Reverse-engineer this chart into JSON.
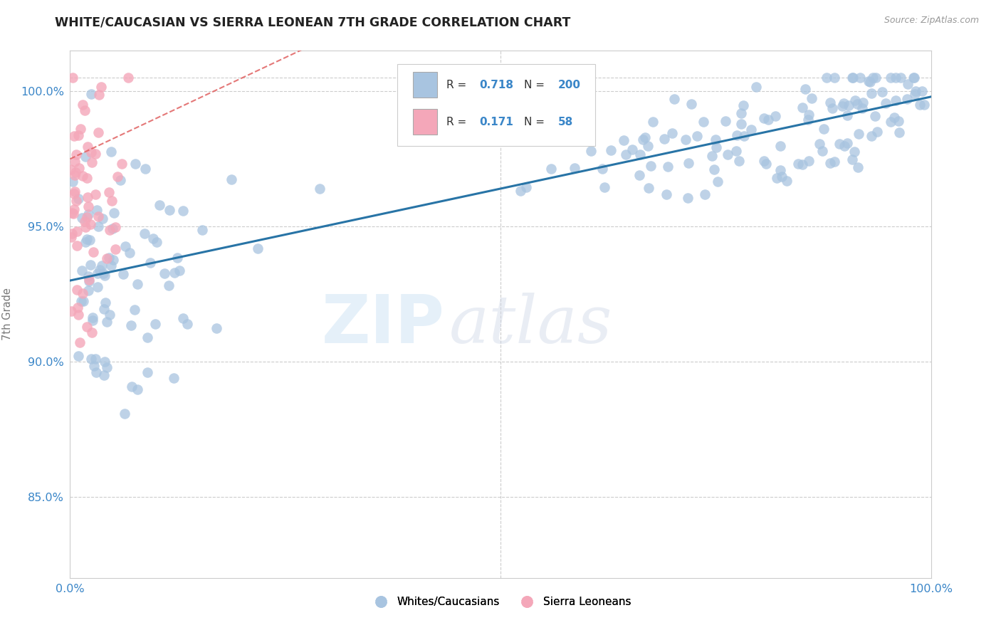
{
  "title": "WHITE/CAUCASIAN VS SIERRA LEONEAN 7TH GRADE CORRELATION CHART",
  "source": "Source: ZipAtlas.com",
  "ylabel": "7th Grade",
  "xlabel": "",
  "xlim": [
    0.0,
    1.0
  ],
  "ylim": [
    0.82,
    1.015
  ],
  "yticks": [
    0.85,
    0.9,
    0.95,
    1.0
  ],
  "ytick_labels": [
    "85.0%",
    "90.0%",
    "95.0%",
    "100.0%"
  ],
  "xticks": [
    0.0,
    0.5,
    1.0
  ],
  "xtick_labels": [
    "0.0%",
    "",
    "100.0%"
  ],
  "blue_R": 0.718,
  "blue_N": 200,
  "pink_R": 0.171,
  "pink_N": 58,
  "blue_color": "#a8c4e0",
  "pink_color": "#f4a7b9",
  "blue_line_color": "#2874a6",
  "pink_line_color": "#e06060",
  "legend_blue_fill": "#a8c4e0",
  "legend_pink_fill": "#f4a7b9",
  "watermark_zip": "ZIP",
  "watermark_atlas": "atlas",
  "title_fontsize": 13,
  "axis_label_color": "#777777",
  "tick_color": "#3a86c8",
  "background_color": "#ffffff",
  "grid_color": "#cccccc"
}
